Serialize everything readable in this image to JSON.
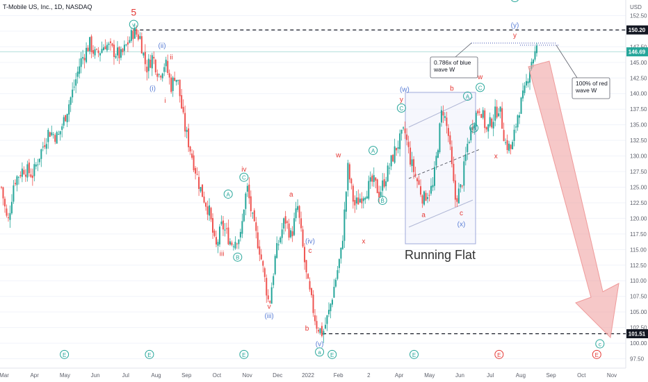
{
  "chart_data": {
    "type": "candlestick",
    "title": "T-Mobile US, Inc., 1D, NASDAQ",
    "y_unit": "USD",
    "ylim": [
      96,
      155
    ],
    "y_ticks": [
      "152.50",
      "150.00",
      "147.50",
      "145.00",
      "142.50",
      "140.00",
      "137.50",
      "135.00",
      "132.50",
      "130.00",
      "127.50",
      "125.00",
      "122.50",
      "120.00",
      "117.50",
      "115.00",
      "112.50",
      "110.00",
      "107.50",
      "105.00",
      "102.50",
      "100.00",
      "97.50"
    ],
    "x_ticks": [
      "Mar",
      "Apr",
      "May",
      "Jun",
      "Jul",
      "Aug",
      "Sep",
      "Oct",
      "Nov",
      "Dec",
      "2022",
      "Feb",
      "2",
      "Apr",
      "May",
      "Jun",
      "Jul",
      "Aug",
      "Sep",
      "Oct",
      "Nov"
    ],
    "price_badges": [
      {
        "value": "150.20",
        "color": "#131722"
      },
      {
        "value": "146.69",
        "color": "#26a69a"
      },
      {
        "value": "101.51",
        "color": "#131722"
      }
    ],
    "path_points": [
      [
        0,
        125
      ],
      [
        2,
        119
      ],
      [
        4,
        126
      ],
      [
        7,
        128
      ],
      [
        10,
        127
      ],
      [
        12,
        130
      ],
      [
        15,
        134
      ],
      [
        18,
        133
      ],
      [
        20,
        136
      ],
      [
        23,
        141
      ],
      [
        25,
        145
      ],
      [
        28,
        148
      ],
      [
        30,
        146
      ],
      [
        33,
        148
      ],
      [
        35,
        147
      ],
      [
        38,
        146
      ],
      [
        40,
        148
      ],
      [
        42,
        150
      ],
      [
        44,
        149
      ],
      [
        46,
        144
      ],
      [
        48,
        146
      ],
      [
        50,
        143
      ],
      [
        52,
        145
      ],
      [
        54,
        141
      ],
      [
        55,
        143
      ],
      [
        56,
        142
      ],
      [
        58,
        135
      ],
      [
        60,
        131
      ],
      [
        63,
        125
      ],
      [
        66,
        121
      ],
      [
        68,
        115
      ],
      [
        70,
        119
      ],
      [
        73,
        116
      ],
      [
        75,
        117
      ],
      [
        76,
        117
      ],
      [
        77,
        122
      ],
      [
        78,
        125
      ],
      [
        80,
        119
      ],
      [
        82,
        115
      ],
      [
        85,
        106
      ],
      [
        87,
        114
      ],
      [
        90,
        120
      ],
      [
        92,
        117
      ],
      [
        94,
        122
      ],
      [
        97,
        110
      ],
      [
        100,
        103
      ],
      [
        102,
        101.5
      ],
      [
        104,
        105
      ],
      [
        106,
        110
      ],
      [
        108,
        115
      ],
      [
        110,
        128
      ],
      [
        112,
        122
      ],
      [
        115,
        124
      ],
      [
        118,
        126
      ],
      [
        120,
        124
      ],
      [
        123,
        128
      ],
      [
        125,
        131
      ],
      [
        128,
        134
      ],
      [
        130,
        129
      ],
      [
        132,
        126
      ],
      [
        134,
        123
      ],
      [
        135,
        124
      ],
      [
        137,
        125
      ],
      [
        140,
        138
      ],
      [
        142,
        133
      ],
      [
        144,
        123
      ],
      [
        146,
        125
      ],
      [
        148,
        132
      ],
      [
        150,
        136
      ],
      [
        152,
        138
      ],
      [
        154,
        134
      ],
      [
        156,
        136
      ],
      [
        158,
        138
      ],
      [
        160,
        132
      ],
      [
        162,
        131
      ],
      [
        164,
        137
      ],
      [
        166,
        140
      ],
      [
        168,
        145
      ],
      [
        170,
        147
      ]
    ],
    "wave_labels": [
      {
        "text": "5",
        "color": "#e53935",
        "circled": false,
        "x": 42,
        "y": 152.5
      },
      {
        "text": "v",
        "color": "#26a69a",
        "circled": true,
        "x": 42,
        "y": 150.7
      },
      {
        "text": "(ii)",
        "color": "#5b7fd6",
        "circled": false,
        "x": 51,
        "y": 147.3
      },
      {
        "text": "ii",
        "color": "#e53935",
        "circled": false,
        "x": 54,
        "y": 145.5
      },
      {
        "text": "(i)",
        "color": "#5b7fd6",
        "circled": false,
        "x": 48,
        "y": 140.5
      },
      {
        "text": "i",
        "color": "#e53935",
        "circled": false,
        "x": 52,
        "y": 138.5
      },
      {
        "text": "iv",
        "color": "#e53935",
        "circled": false,
        "x": 77,
        "y": 127.5
      },
      {
        "text": "C",
        "color": "#26a69a",
        "circled": true,
        "x": 77,
        "y": 126.2
      },
      {
        "text": "A",
        "color": "#26a69a",
        "circled": true,
        "x": 72,
        "y": 123.5
      },
      {
        "text": "iii",
        "color": "#e53935",
        "circled": false,
        "x": 70,
        "y": 114.0
      },
      {
        "text": "B",
        "color": "#26a69a",
        "circled": true,
        "x": 75,
        "y": 113.4
      },
      {
        "text": "a",
        "color": "#e53935",
        "circled": false,
        "x": 92,
        "y": 123.5
      },
      {
        "text": "(iv)",
        "color": "#5b7fd6",
        "circled": false,
        "x": 98,
        "y": 116.0
      },
      {
        "text": "c",
        "color": "#e53935",
        "circled": false,
        "x": 98,
        "y": 114.5
      },
      {
        "text": "v",
        "color": "#e53935",
        "circled": false,
        "x": 85,
        "y": 105.5
      },
      {
        "text": "(iii)",
        "color": "#5b7fd6",
        "circled": false,
        "x": 85,
        "y": 104.0
      },
      {
        "text": "b",
        "color": "#e53935",
        "circled": false,
        "x": 97,
        "y": 102.0
      },
      {
        "text": "(v)",
        "color": "#5b7fd6",
        "circled": false,
        "x": 101,
        "y": 99.5
      },
      {
        "text": "a",
        "color": "#26a69a",
        "circled": true,
        "x": 101,
        "y": 98.2
      },
      {
        "text": "w",
        "color": "#e53935",
        "circled": false,
        "x": 107,
        "y": 129.8
      },
      {
        "text": "A",
        "color": "#26a69a",
        "circled": true,
        "x": 118,
        "y": 130.5
      },
      {
        "text": "B",
        "color": "#26a69a",
        "circled": true,
        "x": 121,
        "y": 122.5
      },
      {
        "text": "x",
        "color": "#e53935",
        "circled": false,
        "x": 115,
        "y": 116.0
      },
      {
        "text": "(w)",
        "color": "#5b7fd6",
        "circled": false,
        "x": 128,
        "y": 140.3
      },
      {
        "text": "y",
        "color": "#e53935",
        "circled": false,
        "x": 127,
        "y": 138.7
      },
      {
        "text": "C",
        "color": "#26a69a",
        "circled": true,
        "x": 127,
        "y": 137.3
      },
      {
        "text": "b",
        "color": "#e53935",
        "circled": false,
        "x": 143,
        "y": 140.5
      },
      {
        "text": "a",
        "color": "#e53935",
        "circled": false,
        "x": 134,
        "y": 120.2
      },
      {
        "text": "c",
        "color": "#e53935",
        "circled": false,
        "x": 146,
        "y": 120.5
      },
      {
        "text": "(x)",
        "color": "#5b7fd6",
        "circled": false,
        "x": 146,
        "y": 118.7
      },
      {
        "text": "A",
        "color": "#26a69a",
        "circled": true,
        "x": 148,
        "y": 139.2
      },
      {
        "text": "w",
        "color": "#e53935",
        "circled": false,
        "x": 152,
        "y": 142.3
      },
      {
        "text": "C",
        "color": "#26a69a",
        "circled": true,
        "x": 152,
        "y": 140.6
      },
      {
        "text": "B",
        "color": "#26a69a",
        "circled": true,
        "x": 150,
        "y": 134.1
      },
      {
        "text": "x",
        "color": "#e53935",
        "circled": false,
        "x": 157,
        "y": 129.6
      },
      {
        "text": "b",
        "color": "#26a69a",
        "circled": true,
        "x": 163,
        "y": 155.0
      },
      {
        "text": "(y)",
        "color": "#5b7fd6",
        "circled": false,
        "x": 163,
        "y": 150.6
      },
      {
        "text": "y",
        "color": "#e53935",
        "circled": false,
        "x": 163,
        "y": 149.0
      },
      {
        "text": "c",
        "color": "#26a69a",
        "circled": true,
        "x": 190,
        "y": 99.5
      },
      {
        "text": "E",
        "color": "#26a69a",
        "circled": true,
        "x": 20,
        "y": 97.8
      },
      {
        "text": "E",
        "color": "#26a69a",
        "circled": true,
        "x": 47,
        "y": 97.8
      },
      {
        "text": "E",
        "color": "#26a69a",
        "circled": true,
        "x": 77,
        "y": 97.8
      },
      {
        "text": "E",
        "color": "#26a69a",
        "circled": true,
        "x": 105,
        "y": 97.8
      },
      {
        "text": "E",
        "color": "#26a69a",
        "circled": true,
        "x": 131,
        "y": 97.8
      },
      {
        "text": "E",
        "color": "#e53935",
        "circled": true,
        "x": 158,
        "y": 97.8
      },
      {
        "text": "E",
        "color": "#e53935",
        "circled": true,
        "x": 189,
        "y": 97.8
      }
    ],
    "pattern_label": "Running Flat",
    "annotations": [
      {
        "lines": [
          "0.786x of blue",
          "wave W"
        ]
      },
      {
        "lines": [
          "100% of red",
          "wave W"
        ]
      }
    ],
    "levels": [
      150.2,
      146.69,
      101.51
    ]
  }
}
